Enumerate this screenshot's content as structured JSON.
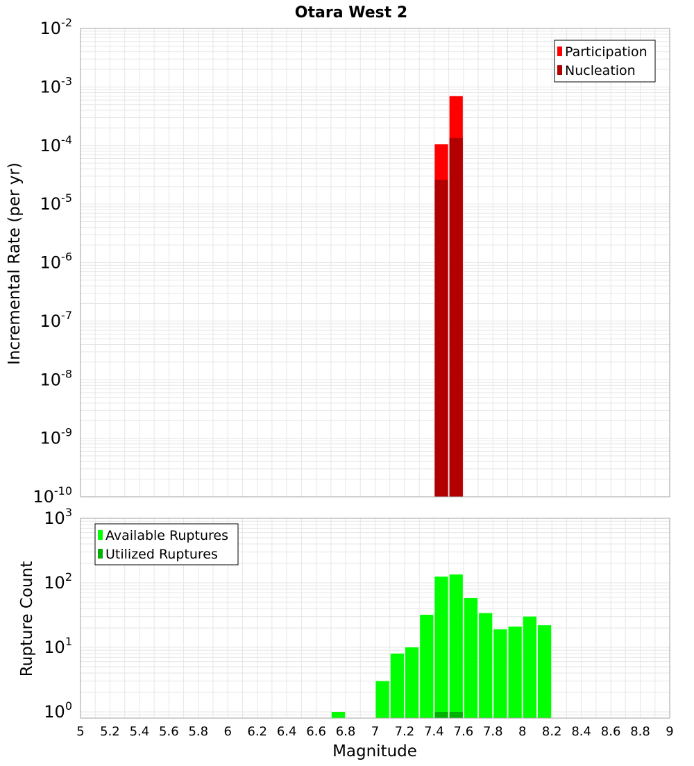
{
  "colors": {
    "participation": "#ff0000",
    "nucleation": "#b20000",
    "available": "#00ff00",
    "utilized": "#00b200",
    "grid": "#e6e6e6",
    "frame": "#a0a0a0"
  },
  "chart_data": [
    {
      "type": "bar",
      "title": "Otara West 2",
      "xlabel": "",
      "ylabel": "Incremental Rate (per yr)",
      "yscale": "log",
      "xlim": [
        5,
        9
      ],
      "ylim": [
        1e-10,
        0.01
      ],
      "ytick_exponents": [
        -10,
        -9,
        -8,
        -7,
        -6,
        -5,
        -4,
        -3,
        -2
      ],
      "ytick_base": "10",
      "legend": {
        "position": "top-right",
        "entries": [
          "Participation",
          "Nucleation"
        ]
      },
      "bar_width": 0.1,
      "series": [
        {
          "name": "Participation",
          "color": "#ff0000",
          "x": [
            7.45,
            7.55
          ],
          "values": [
            0.000105,
            0.0007
          ]
        },
        {
          "name": "Nucleation",
          "color": "#b20000",
          "x": [
            7.45,
            7.55
          ],
          "values": [
            2.6e-05,
            0.000135
          ]
        }
      ]
    },
    {
      "type": "bar",
      "title": "",
      "xlabel": "Magnitude",
      "ylabel": "Rupture Count",
      "yscale": "log",
      "xlim": [
        5,
        9
      ],
      "ylim": [
        0.8,
        1000
      ],
      "ytick_exponents": [
        0,
        1,
        2,
        3
      ],
      "ytick_base": "10",
      "xticks": [
        "5",
        "5.2",
        "5.4",
        "5.6",
        "5.8",
        "6",
        "6.2",
        "6.4",
        "6.6",
        "6.8",
        "7",
        "7.2",
        "7.4",
        "7.6",
        "7.8",
        "8",
        "8.2",
        "8.4",
        "8.6",
        "8.8",
        "9"
      ],
      "legend": {
        "position": "top-left",
        "entries": [
          "Available Ruptures",
          "Utilized Ruptures"
        ]
      },
      "bar_width": 0.1,
      "series": [
        {
          "name": "Available Ruptures",
          "color": "#00ff00",
          "x": [
            6.75,
            7.05,
            7.15,
            7.25,
            7.35,
            7.45,
            7.55,
            7.65,
            7.75,
            7.85,
            7.95,
            8.05,
            8.15
          ],
          "values": [
            1,
            3,
            8,
            10,
            32,
            125,
            135,
            58,
            34,
            19,
            21,
            30,
            22
          ]
        },
        {
          "name": "Utilized Ruptures",
          "color": "#00b200",
          "x": [
            7.45,
            7.55
          ],
          "values": [
            1,
            1
          ]
        }
      ]
    }
  ]
}
